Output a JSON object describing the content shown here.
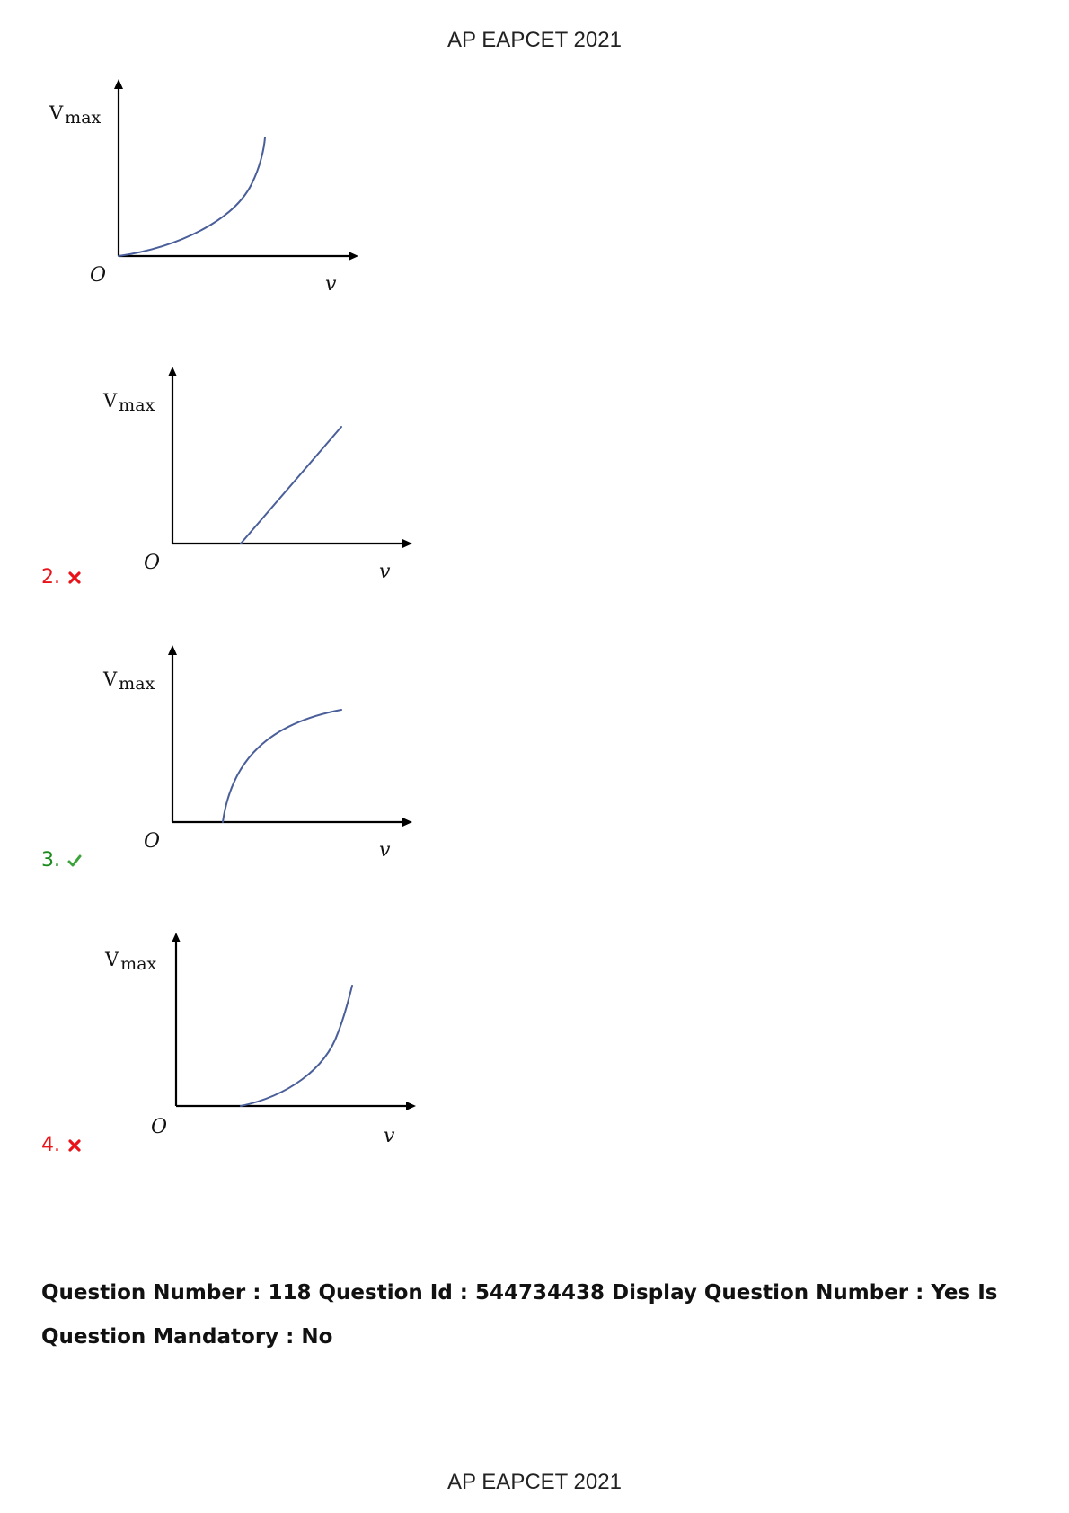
{
  "header": {
    "title": "AP EAPCET 2021"
  },
  "footer": {
    "title": "AP EAPCET 2021"
  },
  "graph_labels": {
    "y_main": "V",
    "y_sub": "max",
    "origin": "O",
    "x": "v"
  },
  "options": [
    {
      "number": "",
      "status": "none"
    },
    {
      "number": "2.",
      "status": "wrong",
      "icon": "cross-icon"
    },
    {
      "number": "3.",
      "status": "correct",
      "icon": "check-icon"
    },
    {
      "number": "4.",
      "status": "wrong",
      "icon": "cross-icon"
    }
  ],
  "question_meta": {
    "text": "Question Number : 118 Question Id : 544734438 Display Question Number : Yes Is Question Mandatory : No"
  },
  "colors": {
    "wrong": "#e8141a",
    "correct": "#1b8a1b",
    "curve": "#4a5f9a"
  }
}
